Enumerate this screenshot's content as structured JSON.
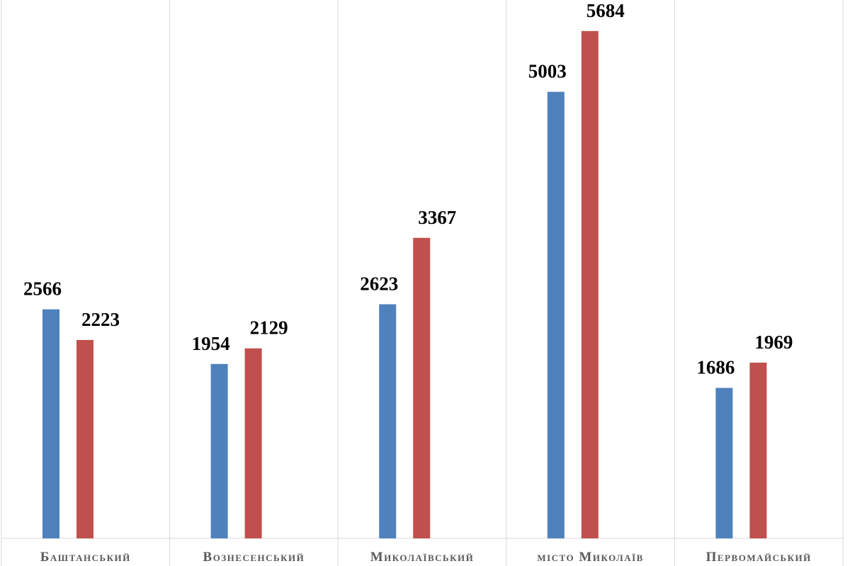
{
  "chart_data": {
    "type": "bar",
    "categories": [
      "Баштанський",
      "Вознесенський",
      "Миколаївський",
      "місто Миколаїв",
      "Первомайський"
    ],
    "series": [
      {
        "color": "#4f81bd",
        "values": [
          2566,
          1954,
          2623,
          5003,
          1686
        ]
      },
      {
        "color": "#c0504d",
        "values": [
          2223,
          2129,
          3367,
          5684,
          1969
        ]
      }
    ],
    "ylim": [
      0,
      6000
    ]
  }
}
